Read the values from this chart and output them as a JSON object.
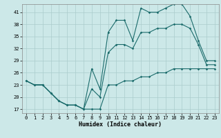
{
  "xlabel": "Humidex (Indice chaleur)",
  "bg_color": "#cce8e8",
  "grid_color": "#aacccc",
  "line_color": "#1a6b6b",
  "x": [
    0,
    1,
    2,
    3,
    4,
    5,
    6,
    7,
    8,
    9,
    10,
    11,
    12,
    13,
    14,
    15,
    16,
    17,
    18,
    19,
    20,
    21,
    22,
    23
  ],
  "y_top": [
    24,
    23,
    23,
    21,
    19,
    18,
    18,
    17,
    27,
    22,
    36,
    39,
    39,
    34,
    42,
    41,
    41,
    42,
    43,
    43,
    40,
    34,
    29,
    29
  ],
  "y_bot": [
    24,
    23,
    23,
    21,
    19,
    18,
    18,
    17,
    17,
    17,
    23,
    23,
    24,
    24,
    25,
    25,
    26,
    26,
    27,
    27,
    27,
    27,
    27,
    27
  ],
  "y_mid": [
    24,
    23,
    23,
    21,
    19,
    18,
    18,
    17,
    22,
    20,
    31,
    33,
    33,
    32,
    36,
    36,
    37,
    37,
    38,
    38,
    37,
    33,
    28,
    28
  ],
  "ylim": [
    16,
    43
  ],
  "xlim": [
    -0.5,
    23.5
  ],
  "yticks": [
    17,
    20,
    23,
    26,
    29,
    32,
    35,
    38,
    41
  ],
  "xticks": [
    0,
    1,
    2,
    3,
    4,
    5,
    6,
    7,
    8,
    9,
    10,
    11,
    12,
    13,
    14,
    15,
    16,
    17,
    18,
    19,
    20,
    21,
    22,
    23
  ],
  "marker": "D",
  "marker_size": 1.8,
  "line_width": 0.8,
  "tick_fontsize": 5.0,
  "xlabel_fontsize": 6.0
}
